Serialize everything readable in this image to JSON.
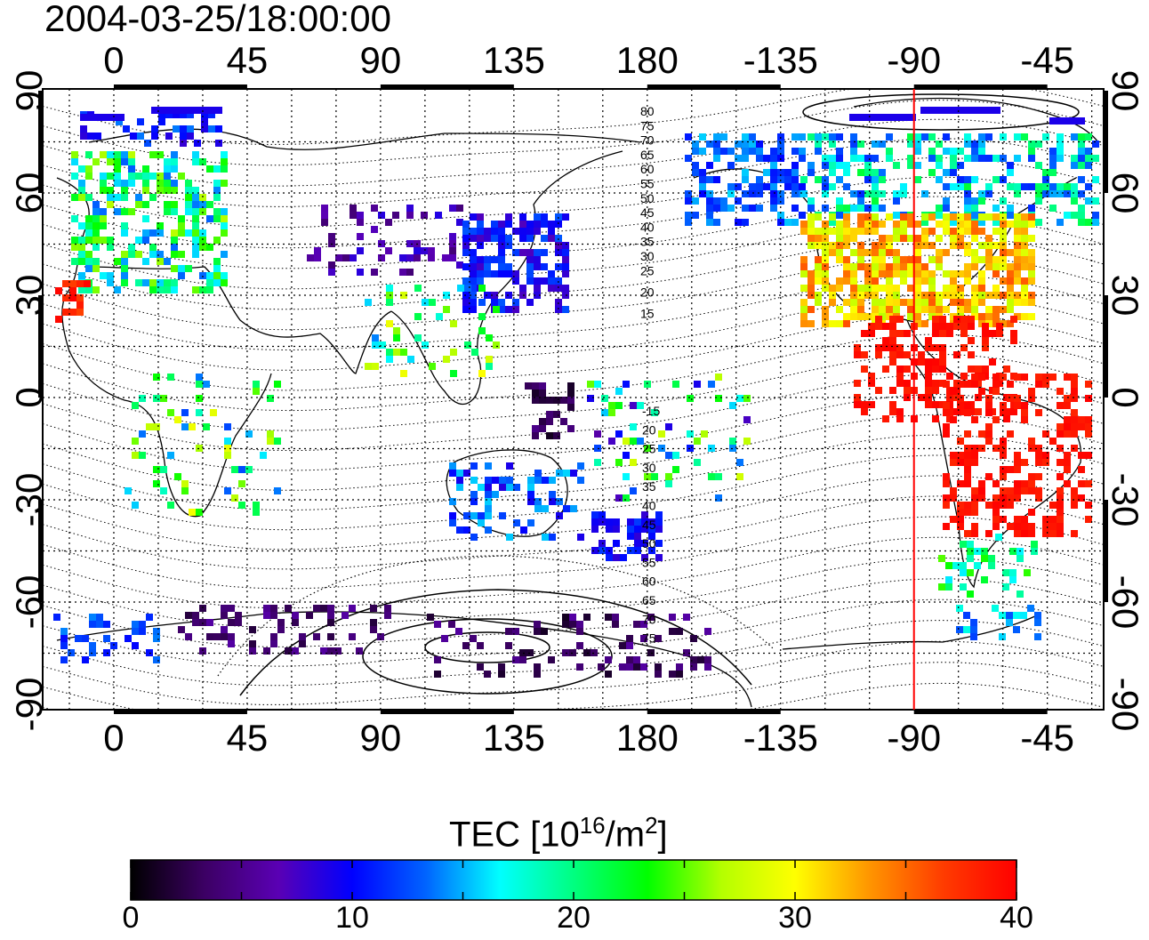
{
  "title": "2004-03-25/18:00:00",
  "map": {
    "lon_ticks": [
      "0",
      "45",
      "90",
      "135",
      "180",
      "-135",
      "-90",
      "-45"
    ],
    "lat_ticks": [
      "90",
      "60",
      "30",
      "0",
      "-30",
      "-60",
      "-90"
    ],
    "marker_longitude": -90,
    "marker_color": "#ff0000",
    "contour_labels_north": [
      "80",
      "75",
      "70",
      "65",
      "60",
      "55",
      "50",
      "45",
      "40",
      "35",
      "30",
      "25",
      "20",
      "15"
    ],
    "contour_labels_south": [
      "-15",
      "20",
      "25",
      "30",
      "35",
      "40",
      "45",
      "50",
      "55",
      "60",
      "65",
      "70",
      "75"
    ]
  },
  "colorbar": {
    "title_main": "TEC  [10",
    "title_sup1": "16",
    "title_mid": "/m",
    "title_sup2": "2",
    "title_end": "]",
    "min": 0,
    "max": 40,
    "tick_labels": [
      "0",
      "10",
      "20",
      "30",
      "40"
    ],
    "colors": [
      "#000000",
      "#3c0064",
      "#5a00b4",
      "#0000ff",
      "#0064ff",
      "#00ffff",
      "#00ff80",
      "#00ff00",
      "#b4ff00",
      "#ffff00",
      "#ff9600",
      "#ff3c00",
      "#ff0000"
    ]
  },
  "tec_regions": [
    {
      "name": "europe",
      "level": 22
    },
    {
      "name": "north-america",
      "level": 33
    },
    {
      "name": "south-america",
      "level": 39
    },
    {
      "name": "east-asia",
      "level": 10
    },
    {
      "name": "australia",
      "level": 9
    },
    {
      "name": "antarctica",
      "level": 3
    }
  ]
}
